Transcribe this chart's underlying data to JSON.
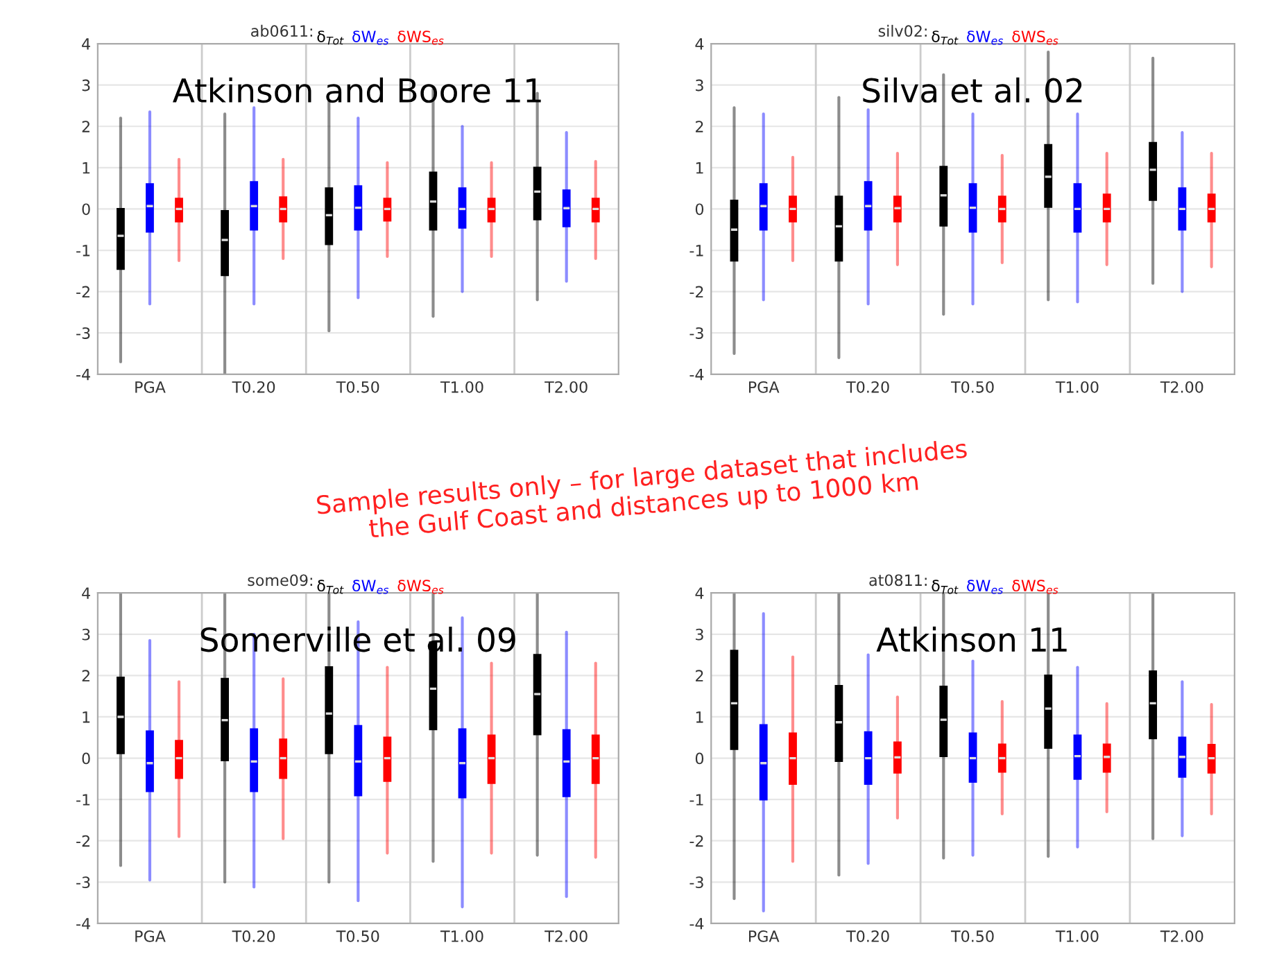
{
  "chart_data": [
    {
      "type": "box",
      "title": "ab0611:",
      "subtitle": "Atkinson and Boore 11",
      "categories": [
        "PGA",
        "T0.20",
        "T0.50",
        "T1.00",
        "T2.00"
      ],
      "ylim": [
        -4,
        4
      ],
      "yticks": [
        -4,
        -3,
        -2,
        -1,
        0,
        1,
        2,
        3,
        4
      ],
      "grid": "y",
      "legend": "top",
      "series": [
        {
          "name": "δ$_{Tot}$",
          "color": "#000000",
          "boxes": [
            {
              "low": -3.7,
              "q1": -1.45,
              "median": -0.65,
              "q3": 0.0,
              "high": 2.2
            },
            {
              "low": -4.0,
              "q1": -1.6,
              "median": -0.75,
              "q3": -0.05,
              "high": 2.3
            },
            {
              "low": -2.95,
              "q1": -0.85,
              "median": -0.15,
              "q3": 0.5,
              "high": 2.6
            },
            {
              "low": -2.6,
              "q1": -0.5,
              "median": 0.18,
              "q3": 0.88,
              "high": 2.9
            },
            {
              "low": -2.2,
              "q1": -0.25,
              "median": 0.42,
              "q3": 1.0,
              "high": 2.8
            }
          ]
        },
        {
          "name": "δW$_{es}$",
          "color": "#0000ff",
          "boxes": [
            {
              "low": -2.3,
              "q1": -0.55,
              "median": 0.07,
              "q3": 0.6,
              "high": 2.35
            },
            {
              "low": -2.3,
              "q1": -0.5,
              "median": 0.07,
              "q3": 0.65,
              "high": 2.45
            },
            {
              "low": -2.15,
              "q1": -0.5,
              "median": 0.03,
              "q3": 0.55,
              "high": 2.2
            },
            {
              "low": -2.0,
              "q1": -0.45,
              "median": 0.0,
              "q3": 0.5,
              "high": 2.0
            },
            {
              "low": -1.75,
              "q1": -0.42,
              "median": 0.02,
              "q3": 0.45,
              "high": 1.85
            }
          ]
        },
        {
          "name": "δWS$_{es}$",
          "color": "#ff0000",
          "boxes": [
            {
              "low": -1.25,
              "q1": -0.3,
              "median": 0.0,
              "q3": 0.25,
              "high": 1.2
            },
            {
              "low": -1.2,
              "q1": -0.3,
              "median": 0.0,
              "q3": 0.28,
              "high": 1.2
            },
            {
              "low": -1.15,
              "q1": -0.28,
              "median": 0.0,
              "q3": 0.25,
              "high": 1.12
            },
            {
              "low": -1.15,
              "q1": -0.3,
              "median": 0.0,
              "q3": 0.25,
              "high": 1.12
            },
            {
              "low": -1.2,
              "q1": -0.3,
              "median": 0.0,
              "q3": 0.25,
              "high": 1.15
            }
          ]
        }
      ]
    },
    {
      "type": "box",
      "title": "silv02:",
      "subtitle": "Silva et al. 02",
      "categories": [
        "PGA",
        "T0.20",
        "T0.50",
        "T1.00",
        "T2.00"
      ],
      "ylim": [
        -4,
        4
      ],
      "yticks": [
        -4,
        -3,
        -2,
        -1,
        0,
        1,
        2,
        3,
        4
      ],
      "grid": "y",
      "legend": "top",
      "series": [
        {
          "name": "δ$_{Tot}$",
          "color": "#000000",
          "boxes": [
            {
              "low": -3.5,
              "q1": -1.25,
              "median": -0.5,
              "q3": 0.2,
              "high": 2.45
            },
            {
              "low": -3.6,
              "q1": -1.25,
              "median": -0.42,
              "q3": 0.3,
              "high": 2.7
            },
            {
              "low": -2.55,
              "q1": -0.4,
              "median": 0.33,
              "q3": 1.02,
              "high": 3.25
            },
            {
              "low": -2.2,
              "q1": 0.05,
              "median": 0.78,
              "q3": 1.55,
              "high": 3.8
            },
            {
              "low": -1.8,
              "q1": 0.22,
              "median": 0.95,
              "q3": 1.6,
              "high": 3.65
            }
          ]
        },
        {
          "name": "δW$_{es}$",
          "color": "#0000ff",
          "boxes": [
            {
              "low": -2.2,
              "q1": -0.5,
              "median": 0.07,
              "q3": 0.6,
              "high": 2.3
            },
            {
              "low": -2.3,
              "q1": -0.5,
              "median": 0.07,
              "q3": 0.65,
              "high": 2.4
            },
            {
              "low": -2.3,
              "q1": -0.55,
              "median": 0.03,
              "q3": 0.6,
              "high": 2.3
            },
            {
              "low": -2.25,
              "q1": -0.55,
              "median": 0.0,
              "q3": 0.6,
              "high": 2.3
            },
            {
              "low": -2.0,
              "q1": -0.5,
              "median": 0.0,
              "q3": 0.5,
              "high": 1.85
            }
          ]
        },
        {
          "name": "δWS$_{es}$",
          "color": "#ff0000",
          "boxes": [
            {
              "low": -1.25,
              "q1": -0.3,
              "median": 0.0,
              "q3": 0.3,
              "high": 1.25
            },
            {
              "low": -1.35,
              "q1": -0.3,
              "median": 0.02,
              "q3": 0.3,
              "high": 1.35
            },
            {
              "low": -1.3,
              "q1": -0.3,
              "median": 0.0,
              "q3": 0.3,
              "high": 1.3
            },
            {
              "low": -1.35,
              "q1": -0.3,
              "median": 0.0,
              "q3": 0.35,
              "high": 1.35
            },
            {
              "low": -1.4,
              "q1": -0.3,
              "median": 0.0,
              "q3": 0.35,
              "high": 1.35
            }
          ]
        }
      ]
    },
    {
      "type": "box",
      "title": "some09:",
      "subtitle": "Somerville et al. 09",
      "categories": [
        "PGA",
        "T0.20",
        "T0.50",
        "T1.00",
        "T2.00"
      ],
      "ylim": [
        -4,
        4
      ],
      "yticks": [
        -4,
        -3,
        -2,
        -1,
        0,
        1,
        2,
        3,
        4
      ],
      "grid": "y",
      "legend": "top",
      "series": [
        {
          "name": "δ$_{Tot}$",
          "color": "#000000",
          "boxes": [
            {
              "low": -2.6,
              "q1": 0.12,
              "median": 1.0,
              "q3": 1.95,
              "high": 4.0
            },
            {
              "low": -3.0,
              "q1": -0.05,
              "median": 0.92,
              "q3": 1.92,
              "high": 4.0
            },
            {
              "low": -3.0,
              "q1": 0.12,
              "median": 1.08,
              "q3": 2.2,
              "high": 4.0
            },
            {
              "low": -2.5,
              "q1": 0.7,
              "median": 1.68,
              "q3": 2.8,
              "high": 4.0
            },
            {
              "low": -2.35,
              "q1": 0.58,
              "median": 1.55,
              "q3": 2.5,
              "high": 4.0
            }
          ]
        },
        {
          "name": "δW$_{es}$",
          "color": "#0000ff",
          "boxes": [
            {
              "low": -2.95,
              "q1": -0.8,
              "median": -0.12,
              "q3": 0.65,
              "high": 2.85
            },
            {
              "low": -3.12,
              "q1": -0.8,
              "median": -0.08,
              "q3": 0.7,
              "high": 3.0
            },
            {
              "low": -3.45,
              "q1": -0.9,
              "median": -0.08,
              "q3": 0.78,
              "high": 3.3
            },
            {
              "low": -3.6,
              "q1": -0.95,
              "median": -0.12,
              "q3": 0.7,
              "high": 3.4
            },
            {
              "low": -3.35,
              "q1": -0.92,
              "median": -0.08,
              "q3": 0.68,
              "high": 3.05
            }
          ]
        },
        {
          "name": "δWS$_{es}$",
          "color": "#ff0000",
          "boxes": [
            {
              "low": -1.9,
              "q1": -0.48,
              "median": 0.0,
              "q3": 0.42,
              "high": 1.85
            },
            {
              "low": -1.95,
              "q1": -0.48,
              "median": 0.0,
              "q3": 0.45,
              "high": 1.92
            },
            {
              "low": -2.3,
              "q1": -0.55,
              "median": 0.0,
              "q3": 0.5,
              "high": 2.2
            },
            {
              "low": -2.3,
              "q1": -0.6,
              "median": 0.0,
              "q3": 0.55,
              "high": 2.3
            },
            {
              "low": -2.4,
              "q1": -0.6,
              "median": 0.0,
              "q3": 0.55,
              "high": 2.3
            }
          ]
        }
      ]
    },
    {
      "type": "box",
      "title": "at0811:",
      "subtitle": "Atkinson 11",
      "categories": [
        "PGA",
        "T0.20",
        "T0.50",
        "T1.00",
        "T2.00"
      ],
      "ylim": [
        -4,
        4
      ],
      "yticks": [
        -4,
        -3,
        -2,
        -1,
        0,
        1,
        2,
        3,
        4
      ],
      "grid": "y",
      "legend": "top",
      "annotations": [
        "Sample results only – for large dataset that includes\nthe Gulf Coast and distances up to 1000 km"
      ],
      "series": [
        {
          "name": "δ$_{Tot}$",
          "color": "#000000",
          "boxes": [
            {
              "low": -3.4,
              "q1": 0.22,
              "median": 1.33,
              "q3": 2.6,
              "high": 4.0
            },
            {
              "low": -2.83,
              "q1": -0.07,
              "median": 0.87,
              "q3": 1.75,
              "high": 4.0
            },
            {
              "low": -2.42,
              "q1": 0.05,
              "median": 0.93,
              "q3": 1.73,
              "high": 4.0
            },
            {
              "low": -2.38,
              "q1": 0.25,
              "median": 1.2,
              "q3": 2.0,
              "high": 4.0
            },
            {
              "low": -1.95,
              "q1": 0.48,
              "median": 1.33,
              "q3": 2.1,
              "high": 4.0
            }
          ]
        },
        {
          "name": "δW$_{es}$",
          "color": "#0000ff",
          "boxes": [
            {
              "low": -3.7,
              "q1": -1.0,
              "median": -0.12,
              "q3": 0.8,
              "high": 3.5
            },
            {
              "low": -2.55,
              "q1": -0.62,
              "median": 0.0,
              "q3": 0.63,
              "high": 2.5
            },
            {
              "low": -2.35,
              "q1": -0.57,
              "median": 0.0,
              "q3": 0.6,
              "high": 2.35
            },
            {
              "low": -2.15,
              "q1": -0.5,
              "median": 0.05,
              "q3": 0.55,
              "high": 2.2
            },
            {
              "low": -1.88,
              "q1": -0.45,
              "median": 0.03,
              "q3": 0.5,
              "high": 1.85
            }
          ]
        },
        {
          "name": "δWS$_{es}$",
          "color": "#ff0000",
          "boxes": [
            {
              "low": -2.5,
              "q1": -0.62,
              "median": 0.0,
              "q3": 0.6,
              "high": 2.45
            },
            {
              "low": -1.45,
              "q1": -0.35,
              "median": 0.02,
              "q3": 0.38,
              "high": 1.48
            },
            {
              "low": -1.35,
              "q1": -0.33,
              "median": 0.0,
              "q3": 0.33,
              "high": 1.37
            },
            {
              "low": -1.3,
              "q1": -0.33,
              "median": 0.03,
              "q3": 0.33,
              "high": 1.32
            },
            {
              "low": -1.35,
              "q1": -0.35,
              "median": 0.0,
              "q3": 0.32,
              "high": 1.3
            }
          ]
        }
      ]
    }
  ]
}
